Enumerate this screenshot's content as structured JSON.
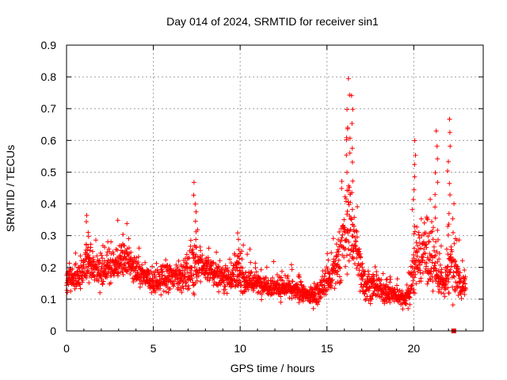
{
  "chart_data": {
    "type": "scatter",
    "title": "Day 014 of 2024, SRMTID for receiver sin1",
    "xlabel": "GPS time / hours",
    "ylabel": "SRMTID / TECUs",
    "xlim": [
      0,
      24
    ],
    "ylim": [
      0,
      0.9
    ],
    "x_ticks": [
      0,
      5,
      10,
      15,
      20
    ],
    "x_tick_labels": [
      "0",
      "5",
      "10",
      "15",
      "20"
    ],
    "y_ticks": [
      0,
      0.1,
      0.2,
      0.3,
      0.4,
      0.5,
      0.6,
      0.7,
      0.8,
      0.9
    ],
    "y_tick_labels": [
      "0",
      "0.1",
      "0.2",
      "0.3",
      "0.4",
      "0.5",
      "0.6",
      "0.7",
      "0.8",
      "0.9"
    ],
    "grid": true,
    "marker": "plus",
    "color": "#ff0000",
    "series": [
      {
        "name": "SRMTID",
        "envelope_x": [
          0,
          0.5,
          1.0,
          1.2,
          1.5,
          2.0,
          2.5,
          3.0,
          3.3,
          3.8,
          4.2,
          5.0,
          5.5,
          6.0,
          6.5,
          7.0,
          7.3,
          7.6,
          8.0,
          8.5,
          9.0,
          9.5,
          9.9,
          10.3,
          11.0,
          12.0,
          13.0,
          13.5,
          14.0,
          14.5,
          14.9,
          15.3,
          15.7,
          16.0,
          16.3,
          16.6,
          16.9,
          17.2,
          17.5,
          18.0,
          18.5,
          19.0,
          19.5,
          19.8,
          20.1,
          20.5,
          20.9,
          21.2,
          21.5,
          21.8,
          22.1,
          22.4,
          22.7,
          23.0
        ],
        "envelope_median": [
          0.16,
          0.17,
          0.18,
          0.24,
          0.2,
          0.19,
          0.2,
          0.22,
          0.23,
          0.2,
          0.18,
          0.15,
          0.16,
          0.17,
          0.17,
          0.18,
          0.22,
          0.2,
          0.2,
          0.18,
          0.17,
          0.17,
          0.18,
          0.16,
          0.15,
          0.14,
          0.13,
          0.12,
          0.11,
          0.12,
          0.15,
          0.17,
          0.22,
          0.3,
          0.35,
          0.28,
          0.2,
          0.15,
          0.14,
          0.13,
          0.12,
          0.11,
          0.1,
          0.13,
          0.22,
          0.25,
          0.24,
          0.2,
          0.16,
          0.14,
          0.22,
          0.2,
          0.14,
          0.15
        ],
        "envelope_spread": [
          0.05,
          0.05,
          0.06,
          0.09,
          0.06,
          0.06,
          0.06,
          0.06,
          0.07,
          0.06,
          0.05,
          0.05,
          0.05,
          0.05,
          0.05,
          0.06,
          0.12,
          0.06,
          0.05,
          0.05,
          0.05,
          0.05,
          0.07,
          0.05,
          0.04,
          0.04,
          0.04,
          0.03,
          0.03,
          0.04,
          0.06,
          0.07,
          0.1,
          0.16,
          0.2,
          0.14,
          0.09,
          0.06,
          0.05,
          0.04,
          0.04,
          0.03,
          0.03,
          0.06,
          0.12,
          0.13,
          0.12,
          0.1,
          0.06,
          0.05,
          0.13,
          0.1,
          0.05,
          0.05
        ],
        "peaks": [
          {
            "x": 1.2,
            "y": 0.37
          },
          {
            "x": 7.4,
            "y": 0.47
          },
          {
            "x": 9.9,
            "y": 0.31
          },
          {
            "x": 16.2,
            "y": 0.8
          },
          {
            "x": 16.4,
            "y": 0.76
          },
          {
            "x": 20.0,
            "y": 0.6
          },
          {
            "x": 21.3,
            "y": 0.63
          },
          {
            "x": 22.0,
            "y": 0.67
          }
        ],
        "points_count": 2200
      }
    ],
    "annotations": [
      {
        "x": 22.3,
        "y": 0.0,
        "marker": "square",
        "color": "#e00000"
      }
    ]
  }
}
